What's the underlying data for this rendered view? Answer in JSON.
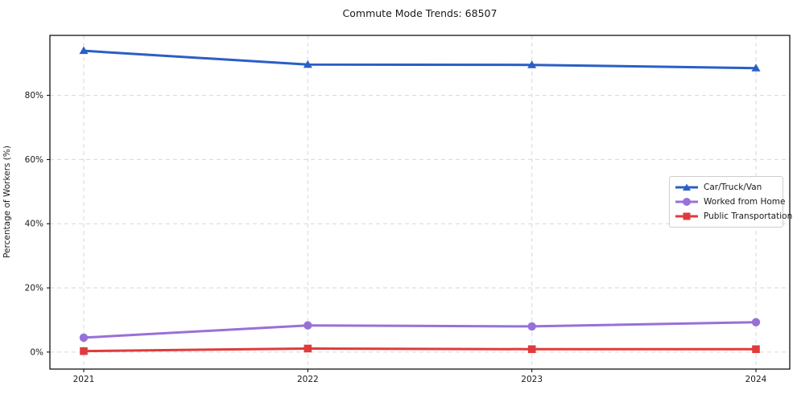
{
  "chart_data": {
    "type": "line",
    "title": "Commute Mode Trends: 68507",
    "xlabel": "",
    "ylabel": "Percentage of Workers (%)",
    "categories": [
      2021,
      2022,
      2023,
      2024
    ],
    "xtick_labels": [
      "2021",
      "2022",
      "2023",
      "2024"
    ],
    "yticks": [
      0,
      20,
      40,
      60,
      80
    ],
    "ytick_labels": [
      "0%",
      "20%",
      "40%",
      "60%",
      "80%"
    ],
    "ylim": [
      -5.3,
      98.7
    ],
    "grid": true,
    "grid_style": "dashed",
    "legend_position": "right-middle",
    "series": [
      {
        "name": "Car/Truck/Van",
        "color": "#2a5fc5",
        "marker": "triangle",
        "values": [
          93.9,
          89.6,
          89.5,
          88.5
        ]
      },
      {
        "name": "Worked from Home",
        "color": "#9771d8",
        "marker": "circle",
        "values": [
          4.5,
          8.3,
          8.0,
          9.3
        ]
      },
      {
        "name": "Public Transportation",
        "color": "#e03b3c",
        "marker": "square",
        "values": [
          0.3,
          1.1,
          0.9,
          0.9
        ]
      }
    ],
    "colors": {
      "grid": "#d7d7d7",
      "spine": "#000000",
      "text": "#1a1a1a",
      "background": "#ffffff"
    }
  }
}
